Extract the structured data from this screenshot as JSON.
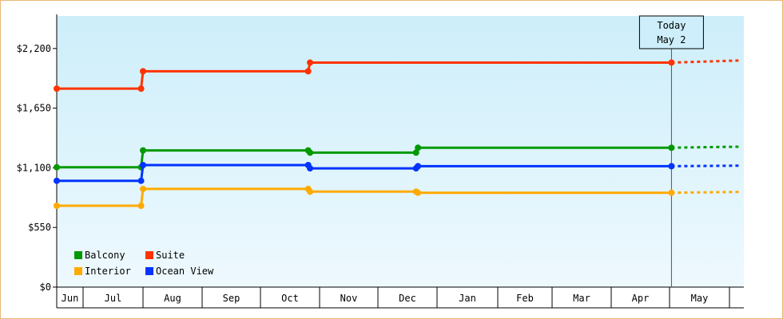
{
  "chart_data": {
    "type": "line",
    "step": true,
    "x_axis": {
      "tick_labels": [
        "Jun",
        "Jul",
        "Aug",
        "Sep",
        "Oct",
        "Nov",
        "Dec",
        "Jan",
        "Feb",
        "Mar",
        "Apr",
        "May"
      ]
    },
    "y_axis": {
      "min": 0,
      "max": 2500,
      "ticks": [
        0,
        550,
        1100,
        1650,
        2200
      ],
      "tick_labels": [
        "$0",
        "$550",
        "$1,100",
        "$1,650",
        "$2,200"
      ]
    },
    "today_marker": {
      "date": "2024-05-02",
      "line1": "Today",
      "line2": "May 2"
    },
    "series": [
      {
        "name": "Suite",
        "color": "#ff3300",
        "points": [
          [
            "2023-06-01",
            1830
          ],
          [
            "2023-07-31",
            1830
          ],
          [
            "2023-08-01",
            1990
          ],
          [
            "2023-10-26",
            1990
          ],
          [
            "2023-10-27",
            2070
          ],
          [
            "2024-05-02",
            2070
          ]
        ],
        "projection": [
          [
            "2024-05-02",
            2070
          ],
          [
            "2024-06-07",
            2090
          ]
        ]
      },
      {
        "name": "Balcony",
        "color": "#009900",
        "points": [
          [
            "2023-06-01",
            1105
          ],
          [
            "2023-07-31",
            1105
          ],
          [
            "2023-08-01",
            1260
          ],
          [
            "2023-10-26",
            1260
          ],
          [
            "2023-10-27",
            1240
          ],
          [
            "2023-12-21",
            1240
          ],
          [
            "2023-12-22",
            1285
          ],
          [
            "2024-05-02",
            1285
          ]
        ],
        "projection": [
          [
            "2024-05-02",
            1285
          ],
          [
            "2024-06-07",
            1295
          ]
        ]
      },
      {
        "name": "Ocean View",
        "color": "#0033ff",
        "points": [
          [
            "2023-06-01",
            980
          ],
          [
            "2023-07-31",
            980
          ],
          [
            "2023-08-01",
            1125
          ],
          [
            "2023-10-26",
            1125
          ],
          [
            "2023-10-27",
            1095
          ],
          [
            "2023-12-21",
            1095
          ],
          [
            "2023-12-22",
            1115
          ],
          [
            "2024-05-02",
            1115
          ]
        ],
        "projection": [
          [
            "2024-05-02",
            1115
          ],
          [
            "2024-06-07",
            1120
          ]
        ]
      },
      {
        "name": "Interior",
        "color": "#ffaa00",
        "points": [
          [
            "2023-06-01",
            750
          ],
          [
            "2023-07-31",
            750
          ],
          [
            "2023-08-01",
            905
          ],
          [
            "2023-10-26",
            905
          ],
          [
            "2023-10-27",
            880
          ],
          [
            "2023-12-21",
            880
          ],
          [
            "2023-12-22",
            870
          ],
          [
            "2024-05-02",
            870
          ]
        ],
        "projection": [
          [
            "2024-05-02",
            870
          ],
          [
            "2024-06-07",
            878
          ]
        ]
      }
    ],
    "legend": {
      "placement": "bottom-left",
      "order": [
        "Balcony",
        "Suite",
        "Interior",
        "Ocean View"
      ]
    }
  }
}
